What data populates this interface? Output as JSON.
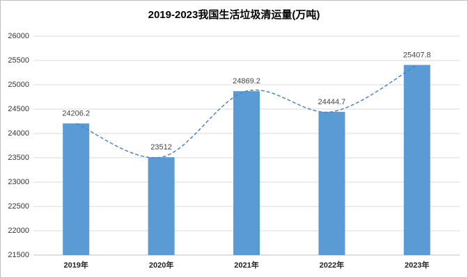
{
  "chart_data": {
    "type": "bar",
    "title": "2019-2023我国生活垃圾清运量(万吨)",
    "categories": [
      "2019年",
      "2020年",
      "2021年",
      "2022年",
      "2023年"
    ],
    "values": [
      24206.2,
      23512,
      24869.2,
      24444.7,
      25407.8
    ],
    "color": "#5b9bd5",
    "smooth_line": true,
    "line_color": "#4a86c5",
    "ylim": [
      21500,
      26000
    ],
    "yticks": [
      21500,
      22000,
      22500,
      23000,
      23500,
      24000,
      24500,
      25000,
      25500,
      26000
    ],
    "grid": true,
    "data_labels": true
  }
}
